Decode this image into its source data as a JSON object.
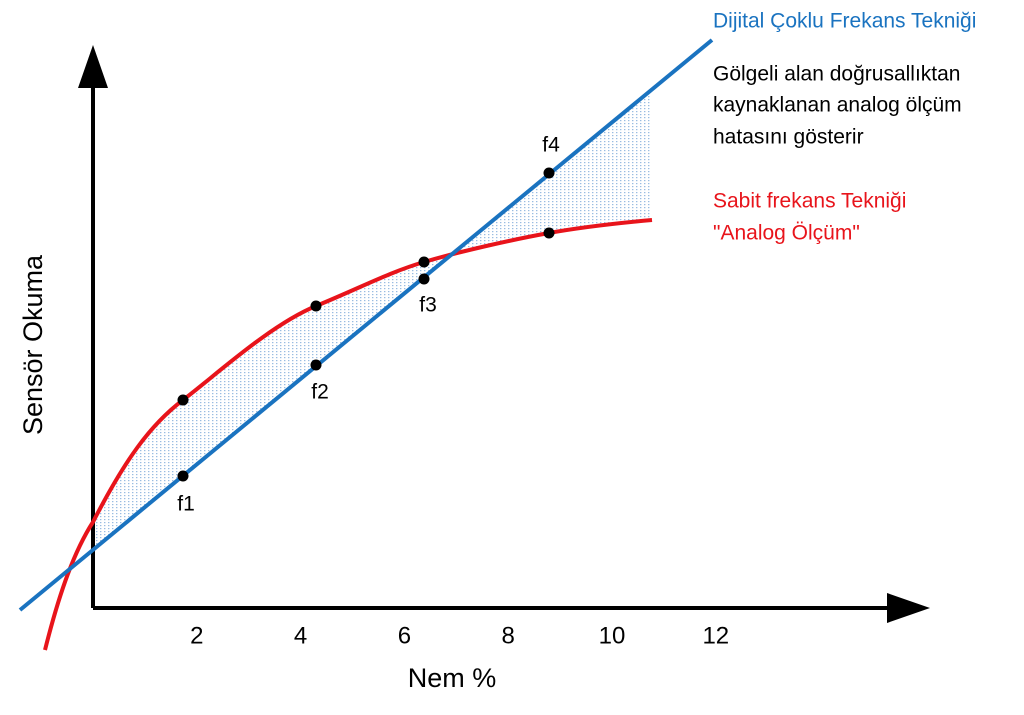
{
  "axes": {
    "x_label": "Nem %",
    "y_label": "Sensör Okuma",
    "x_ticks": [
      2,
      4,
      6,
      8,
      10,
      12
    ]
  },
  "legend": {
    "digital": "Dijital Çoklu Frekans Tekniği",
    "note": [
      "Gölgeli alan doğrusallıktan",
      "kaynaklanan analog ölçüm",
      "hatasını gösterir"
    ],
    "analog": [
      "Sabit frekans Tekniği",
      "\"Analog Ölçüm\""
    ]
  },
  "points": [
    "f1",
    "f2",
    "f3",
    "f4"
  ]
}
